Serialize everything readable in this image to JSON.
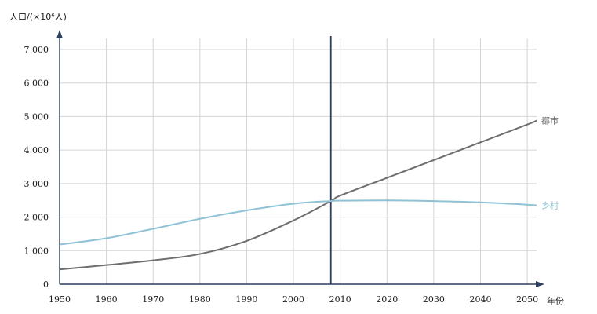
{
  "chart_data": {
    "type": "line",
    "ylabel": "人口/(×10⁶人)",
    "xlabel": "年份",
    "xlim": [
      1950,
      2052
    ],
    "ylim": [
      0,
      7000
    ],
    "x_ticks": [
      1950,
      1960,
      1970,
      1980,
      1990,
      2000,
      2010,
      2020,
      2030,
      2040,
      2050
    ],
    "y_ticks": [
      {
        "value": 0,
        "label": "0"
      },
      {
        "value": 1000,
        "label": "1 000"
      },
      {
        "value": 2000,
        "label": "2 000"
      },
      {
        "value": 3000,
        "label": "3 000"
      },
      {
        "value": 4000,
        "label": "4 000"
      },
      {
        "value": 5000,
        "label": "5 000"
      },
      {
        "value": 6000,
        "label": "6 000"
      },
      {
        "value": 7000,
        "label": "7 000"
      }
    ],
    "grid": true,
    "reference_line_x": 2008,
    "series": [
      {
        "name": "都市",
        "color": "#6e6e6e",
        "points": [
          [
            1950,
            440
          ],
          [
            1960,
            570
          ],
          [
            1970,
            710
          ],
          [
            1980,
            900
          ],
          [
            1990,
            1290
          ],
          [
            2000,
            1900
          ],
          [
            2008,
            2480
          ],
          [
            2010,
            2640
          ],
          [
            2020,
            3170
          ],
          [
            2030,
            3700
          ],
          [
            2040,
            4230
          ],
          [
            2050,
            4760
          ],
          [
            2052,
            4880
          ]
        ]
      },
      {
        "name": "乡村",
        "color": "#8ec2d4",
        "points": [
          [
            1950,
            1180
          ],
          [
            1960,
            1370
          ],
          [
            1970,
            1650
          ],
          [
            1980,
            1950
          ],
          [
            1990,
            2200
          ],
          [
            2000,
            2400
          ],
          [
            2008,
            2480
          ],
          [
            2010,
            2490
          ],
          [
            2020,
            2500
          ],
          [
            2030,
            2480
          ],
          [
            2040,
            2440
          ],
          [
            2050,
            2370
          ],
          [
            2052,
            2350
          ]
        ]
      }
    ]
  }
}
